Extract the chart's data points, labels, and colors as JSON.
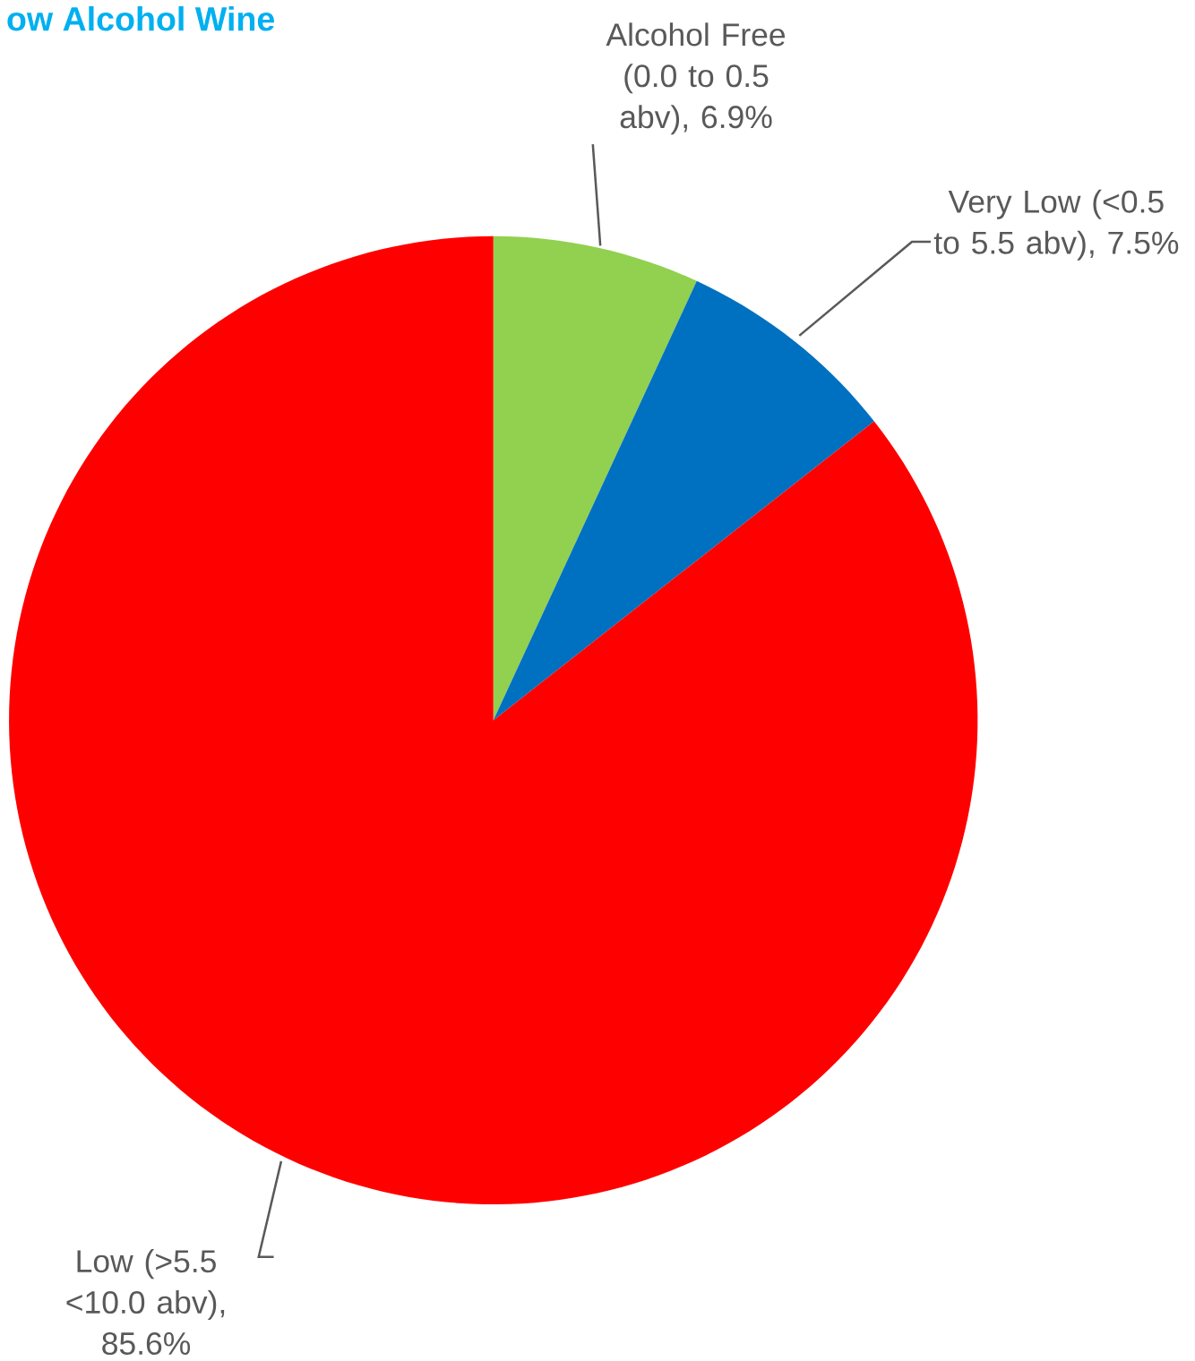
{
  "chart_data": {
    "type": "pie",
    "title": "ow Alcohol Wine",
    "categories": [
      "Alcohol Free (0.0 to 0.5 abv)",
      "Very Low (<0.5 to 5.5 abv)",
      "Low (>5.5 <10.0 abv)"
    ],
    "values": [
      6.9,
      7.5,
      85.6
    ],
    "value_labels": [
      ", 6.9%",
      ", 7.5%",
      ", 85.6%"
    ],
    "colors": [
      "#92d050",
      "#0070c0",
      "#ff0000"
    ]
  }
}
